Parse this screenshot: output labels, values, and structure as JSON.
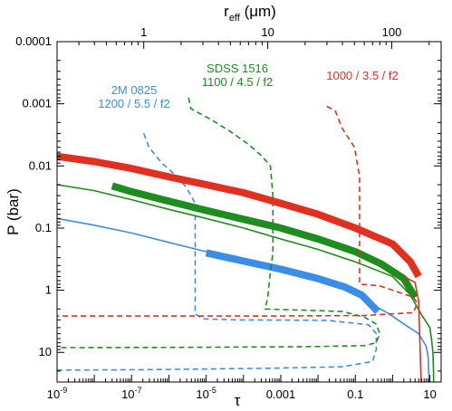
{
  "chart_data": {
    "type": "line",
    "xlabel": "τ",
    "ylabel": "P (bar)",
    "top_xlabel_main": "r",
    "top_xlabel_sub": "eff",
    "top_xlabel_unit": " (μm)",
    "x_scale": "log",
    "y_scale": "log",
    "y_inverted": true,
    "xlim": [
      1e-09,
      20
    ],
    "ylim": [
      0.0001,
      30
    ],
    "top_xlim": [
      0.2,
      250
    ],
    "x_ticks": [
      {
        "value": 1e-09,
        "base": "10",
        "exp": "-9"
      },
      {
        "value": 1e-07,
        "base": "10",
        "exp": "-7"
      },
      {
        "value": 1e-05,
        "base": "10",
        "exp": "-5"
      },
      {
        "value": 0.001,
        "label": "0.001"
      },
      {
        "value": 0.1,
        "label": "0.1"
      },
      {
        "value": 10,
        "label": "10"
      }
    ],
    "y_ticks": [
      {
        "value": 0.0001,
        "label": "0.0001"
      },
      {
        "value": 0.001,
        "label": "0.001"
      },
      {
        "value": 0.01,
        "label": "0.01"
      },
      {
        "value": 0.1,
        "label": "0.1"
      },
      {
        "value": 1,
        "label": "1"
      },
      {
        "value": 10,
        "label": "10"
      }
    ],
    "top_ticks": [
      {
        "value": 1,
        "label": "1"
      },
      {
        "value": 10,
        "label": "10"
      },
      {
        "value": 100,
        "label": "100"
      }
    ],
    "annotations": [
      {
        "lines": [
          "2M 0825",
          "1200 / 5.5 / f2"
        ],
        "color": "#3a8ee6"
      },
      {
        "lines": [
          "SDSS 1516",
          "1100 / 4.5 / f2"
        ],
        "color": "#1e8c1e"
      },
      {
        "lines": [
          "1000 / 3.5 / f2"
        ],
        "color": "#e03020"
      }
    ],
    "series": [
      {
        "color": "#3a8ee6",
        "optical_depth_thin": [
          [
            1e-09,
            0.07
          ],
          [
            1e-08,
            0.09
          ],
          [
            1e-07,
            0.12
          ],
          [
            1e-06,
            0.17
          ],
          [
            1e-05,
            0.24
          ],
          [
            0.0001,
            0.36
          ],
          [
            0.001,
            0.5
          ],
          [
            0.01,
            0.72
          ],
          [
            0.05,
            0.95
          ],
          [
            0.2,
            1.5
          ],
          [
            0.8,
            2.4
          ],
          [
            2,
            3.5
          ],
          [
            5,
            5
          ],
          [
            8,
            8
          ],
          [
            9,
            12
          ],
          [
            9.3,
            20
          ],
          [
            9.5,
            30
          ]
        ],
        "optical_depth_thick": [
          [
            1e-05,
            0.25
          ],
          [
            0.0001,
            0.34
          ],
          [
            0.001,
            0.46
          ],
          [
            0.01,
            0.65
          ],
          [
            0.05,
            0.88
          ],
          [
            0.15,
            1.2
          ],
          [
            0.4,
            2.2
          ]
        ],
        "effective_radius": [
          [
            1,
            0.003
          ],
          [
            1.1,
            0.005
          ],
          [
            1.4,
            0.009
          ],
          [
            1.8,
            0.014
          ],
          [
            2.2,
            0.022
          ],
          [
            2.6,
            0.04
          ],
          [
            2.6,
            0.1
          ],
          [
            2.6,
            0.5
          ],
          [
            2.6,
            1.5
          ],
          [
            2.6,
            2.4
          ],
          [
            3,
            2.9
          ],
          [
            6,
            3.0
          ],
          [
            30,
            3.05
          ],
          [
            65,
            3.6
          ],
          [
            75,
            5
          ],
          [
            75,
            9
          ],
          [
            70,
            14
          ],
          [
            40,
            17
          ],
          [
            10,
            18
          ],
          [
            1,
            19
          ],
          [
            0.3,
            19.2
          ],
          [
            0.2,
            19.3
          ]
        ]
      },
      {
        "color": "#1e8c1e",
        "optical_depth_thin": [
          [
            1e-09,
            0.02
          ],
          [
            1e-08,
            0.025
          ],
          [
            1e-07,
            0.035
          ],
          [
            1e-06,
            0.05
          ],
          [
            1e-05,
            0.07
          ],
          [
            0.0001,
            0.1
          ],
          [
            0.001,
            0.15
          ],
          [
            0.01,
            0.22
          ],
          [
            0.1,
            0.35
          ],
          [
            1,
            0.6
          ],
          [
            3,
            1.2
          ],
          [
            6,
            2.5
          ],
          [
            10,
            4
          ],
          [
            11,
            6
          ],
          [
            12,
            10
          ],
          [
            12.5,
            20
          ],
          [
            12.6,
            30
          ]
        ],
        "optical_depth_thick": [
          [
            3e-08,
            0.021
          ],
          [
            1e-07,
            0.026
          ],
          [
            1e-06,
            0.037
          ],
          [
            1e-05,
            0.052
          ],
          [
            0.0001,
            0.072
          ],
          [
            0.001,
            0.1
          ],
          [
            0.01,
            0.15
          ],
          [
            0.1,
            0.24
          ],
          [
            0.5,
            0.38
          ],
          [
            2,
            0.65
          ],
          [
            4,
            1.3
          ]
        ],
        "effective_radius": [
          [
            2.3,
            0.0008
          ],
          [
            2.4,
            0.0012
          ],
          [
            3.5,
            0.0018
          ],
          [
            5,
            0.0028
          ],
          [
            7,
            0.0045
          ],
          [
            9,
            0.007
          ],
          [
            10.5,
            0.01
          ],
          [
            11,
            0.03
          ],
          [
            11,
            0.1
          ],
          [
            11,
            0.25
          ],
          [
            10.5,
            0.5
          ],
          [
            10,
            1.3
          ],
          [
            9.5,
            2.0
          ],
          [
            20,
            2.1
          ],
          [
            40,
            2.2
          ],
          [
            60,
            2.7
          ],
          [
            75,
            3.5
          ],
          [
            80,
            5
          ],
          [
            75,
            7
          ],
          [
            60,
            7.8
          ],
          [
            20,
            8.1
          ],
          [
            2,
            8.3
          ],
          [
            0.3,
            8.4
          ],
          [
            0.2,
            8.4
          ]
        ]
      },
      {
        "color": "#e03020",
        "optical_depth_thin": [
          [
            2,
            0.6
          ],
          [
            4,
            0.75
          ],
          [
            5,
            1.5
          ],
          [
            5.5,
            10
          ],
          [
            5.7,
            20
          ],
          [
            5.8,
            30
          ]
        ],
        "optical_depth_thick": [
          [
            1e-09,
            0.007
          ],
          [
            1e-08,
            0.0085
          ],
          [
            1e-07,
            0.011
          ],
          [
            1e-06,
            0.015
          ],
          [
            1e-05,
            0.02
          ],
          [
            0.0001,
            0.027
          ],
          [
            0.001,
            0.04
          ],
          [
            0.01,
            0.06
          ],
          [
            0.1,
            0.1
          ],
          [
            1,
            0.18
          ],
          [
            3,
            0.35
          ],
          [
            5,
            0.6
          ]
        ],
        "effective_radius": [
          [
            30,
            0.0011
          ],
          [
            35,
            0.0013
          ],
          [
            40,
            0.0025
          ],
          [
            50,
            0.005
          ],
          [
            55,
            0.015
          ],
          [
            55,
            0.1
          ],
          [
            55,
            0.4
          ],
          [
            55,
            0.8
          ],
          [
            80,
            0.85
          ],
          [
            150,
            1.3
          ],
          [
            160,
            1.6
          ],
          [
            150,
            2.3
          ],
          [
            60,
            2.55
          ],
          [
            10,
            2.6
          ],
          [
            1,
            2.6
          ],
          [
            0.2,
            2.6
          ]
        ]
      }
    ]
  }
}
